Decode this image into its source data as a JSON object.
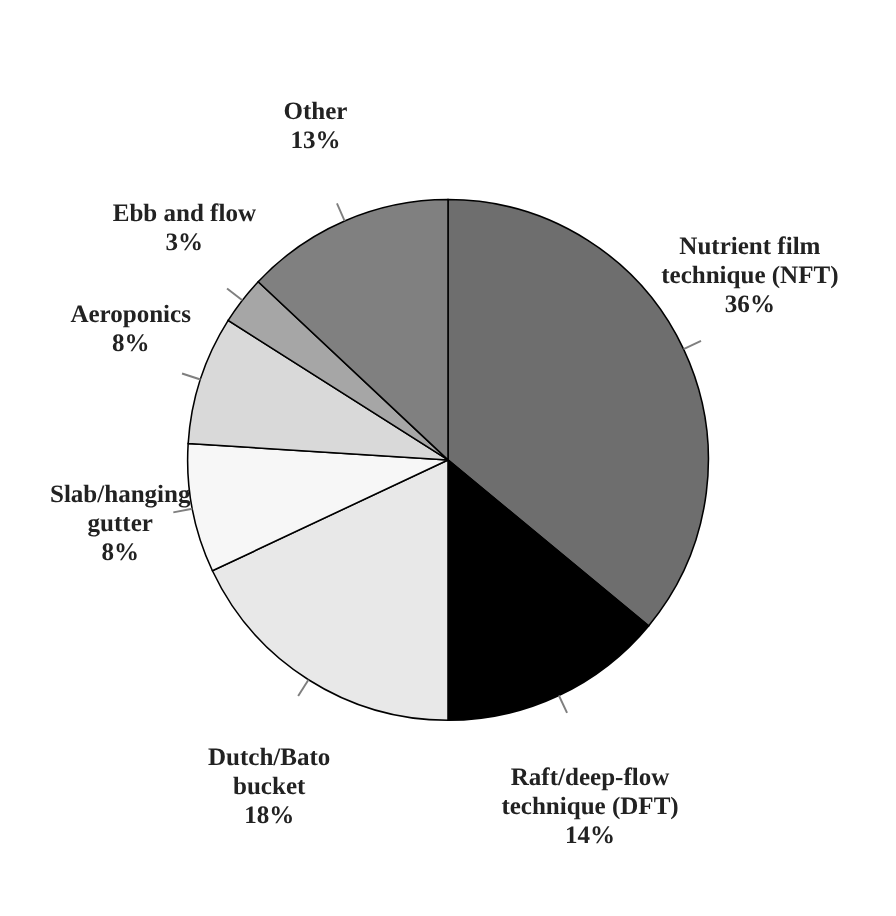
{
  "chart_data": {
    "type": "pie",
    "categories": [
      "Nutrient film technique (NFT)",
      "Raft/deep-flow technique (DFT)",
      "Dutch/Bato bucket",
      "Slab/hanging gutter",
      "Aeroponics",
      "Ebb and flow",
      "Other"
    ],
    "values": [
      36,
      14,
      18,
      8,
      8,
      3,
      13
    ],
    "colors": [
      "#6e6e6e",
      "#000000",
      "#e8e8e8",
      "#f7f7f7",
      "#d9d9d9",
      "#a6a6a6",
      "#808080"
    ],
    "value_labels": [
      "36%",
      "14%",
      "18%",
      "8%",
      "8%",
      "3%",
      "13%"
    ]
  }
}
